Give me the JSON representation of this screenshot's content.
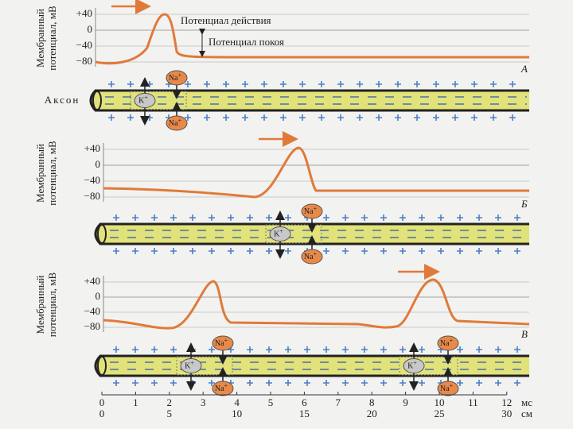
{
  "panels": [
    {
      "y_label": [
        "Мембранный",
        "потенциал, мВ"
      ],
      "yticks": [
        "+40",
        "0",
        "−40",
        "−80"
      ],
      "panel_label": "А",
      "annotations": [
        "Потенциал действия",
        "Потенциал покоя"
      ],
      "axon_label": "Аксон"
    },
    {
      "y_label": [
        "Мембранный",
        "потенциал, мВ"
      ],
      "yticks": [
        "+40",
        "0",
        "−40",
        "−80"
      ],
      "panel_label": "Б"
    },
    {
      "y_label": [
        "Мембранный",
        "потенциал, мВ"
      ],
      "yticks": [
        "+40",
        "0",
        "−40",
        "−80"
      ],
      "panel_label": "В"
    }
  ],
  "ions": {
    "sodium": {
      "base": "Na",
      "charge": "+"
    },
    "potassium": {
      "base": "K",
      "charge": "+"
    }
  },
  "time_axis": {
    "ticks": [
      "0",
      "1",
      "2",
      "3",
      "4",
      "5",
      "6",
      "7",
      "8",
      "9",
      "10",
      "11",
      "12"
    ],
    "unit": "мс"
  },
  "distance_axis": {
    "ticks": [
      "0",
      "5",
      "10",
      "15",
      "20",
      "25",
      "30"
    ],
    "unit": "см"
  }
}
